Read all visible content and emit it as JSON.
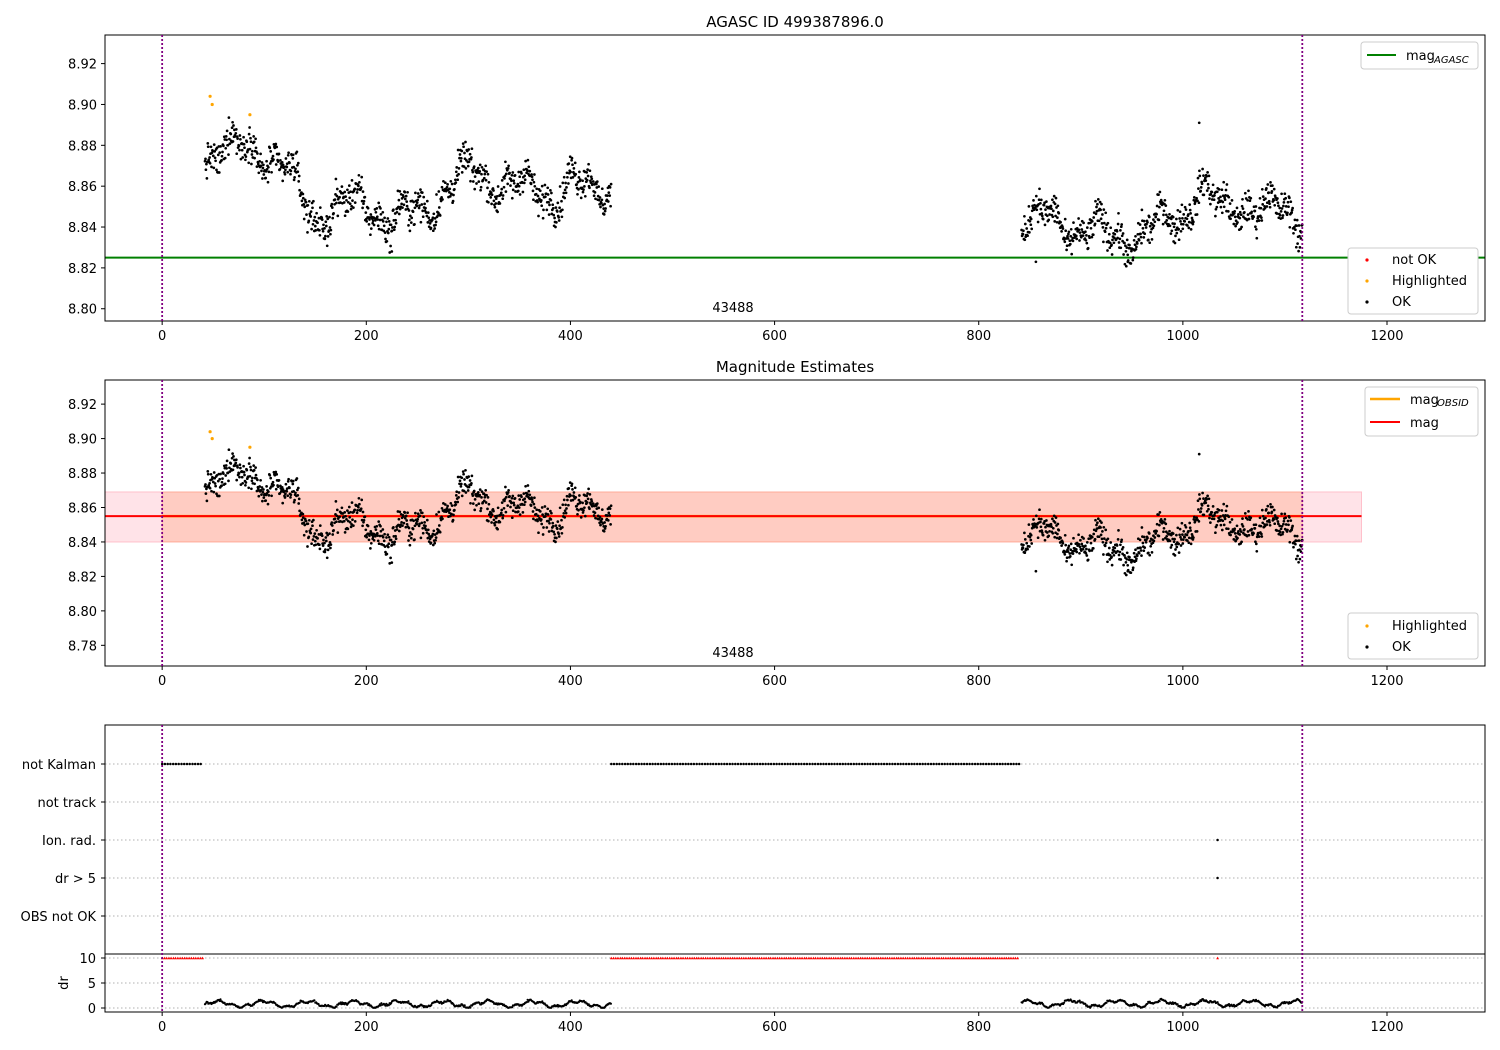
{
  "colors": {
    "ok": "#000000",
    "highlighted": "#ffa500",
    "not_ok": "#ff0000",
    "agasc_line": "#008000",
    "mag_line": "#ff0000",
    "obsid_line": "#ffa500",
    "band_pink": "#ffc0cb",
    "band_orange": "#ffa07a",
    "obs_boundary": "#800080",
    "grid": "#b0b0b0"
  },
  "chart_data": [
    {
      "type": "scatter",
      "title": "AGASC ID 499387896.0",
      "xlim": [
        -56,
        1296
      ],
      "ylim": [
        8.794,
        8.934
      ],
      "xticks": [
        0,
        200,
        400,
        600,
        800,
        1000,
        1200
      ],
      "yticks": [
        8.8,
        8.82,
        8.84,
        8.86,
        8.88,
        8.9,
        8.92
      ],
      "hline": {
        "name": "mag_AGASC",
        "y": 8.825
      },
      "obsid_label": {
        "text": "43488",
        "x": 558
      },
      "obs_boundaries": [
        0,
        1117
      ],
      "legend_top": {
        "placement": "top-right",
        "entries": [
          "mag",
          "AGASC"
        ]
      },
      "legend_bottom": {
        "placement": "lower-right",
        "entries": [
          "not OK",
          "Highlighted",
          "OK"
        ]
      },
      "highlighted_points": [
        [
          47,
          8.904
        ],
        [
          49,
          8.9
        ],
        [
          86,
          8.895
        ]
      ],
      "segments": [
        {
          "x": [
            42,
            440
          ],
          "anchors": [
            [
              42,
              8.875
            ],
            [
              90,
              8.88
            ],
            [
              120,
              8.868
            ],
            [
              150,
              8.845
            ],
            [
              175,
              8.85
            ],
            [
              200,
              8.852
            ],
            [
              225,
              8.843
            ],
            [
              255,
              8.848
            ],
            [
              285,
              8.862
            ],
            [
              305,
              8.867
            ],
            [
              330,
              8.862
            ],
            [
              360,
              8.858
            ],
            [
              385,
              8.856
            ],
            [
              400,
              8.862
            ],
            [
              420,
              8.858
            ],
            [
              440,
              8.86
            ]
          ]
        },
        {
          "x": [
            842,
            1117
          ],
          "anchors": [
            [
              842,
              8.842
            ],
            [
              870,
              8.845
            ],
            [
              900,
              8.838
            ],
            [
              930,
              8.836
            ],
            [
              955,
              8.835
            ],
            [
              980,
              8.842
            ],
            [
              1000,
              8.846
            ],
            [
              1015,
              8.86
            ],
            [
              1040,
              8.847
            ],
            [
              1060,
              8.852
            ],
            [
              1085,
              8.848
            ],
            [
              1117,
              8.845
            ]
          ]
        }
      ],
      "outliers": [
        [
          1016,
          8.891
        ],
        [
          856,
          8.823
        ],
        [
          946,
          8.823
        ],
        [
          225,
          8.828
        ]
      ]
    },
    {
      "type": "scatter",
      "title": "Magnitude Estimates",
      "xlim": [
        -56,
        1296
      ],
      "ylim": [
        8.768,
        8.934
      ],
      "xticks": [
        0,
        200,
        400,
        600,
        800,
        1000,
        1200
      ],
      "yticks": [
        8.78,
        8.8,
        8.82,
        8.84,
        8.86,
        8.88,
        8.9,
        8.92
      ],
      "mag_line": {
        "name": "mag",
        "y": 8.855
      },
      "band_pink": {
        "x": [
          -56,
          1175
        ],
        "y": [
          8.84,
          8.869
        ]
      },
      "band_orange": {
        "x": [
          0,
          1117
        ],
        "y": [
          8.84,
          8.869
        ]
      },
      "obsid_line": {
        "name": "mag_OBSID",
        "y": 8.855,
        "x": [
          0,
          1117
        ]
      },
      "obsid_label": {
        "text": "43488",
        "x": 558
      },
      "obs_boundaries": [
        0,
        1117
      ],
      "legend_top": {
        "placement": "top-right",
        "entries": [
          "mag",
          "OBSID",
          "mag"
        ]
      },
      "legend_bottom": {
        "placement": "lower-right",
        "entries": [
          "Highlighted",
          "OK"
        ]
      }
    },
    {
      "type": "scatter",
      "title": "",
      "xlim": [
        -56,
        1296
      ],
      "xticks": [
        0,
        200,
        400,
        600,
        800,
        1000,
        1200
      ],
      "flag_rows": [
        "not Kalman",
        "not track",
        "Ion. rad.",
        "dr > 5",
        "OBS not OK"
      ],
      "flag_spans": [
        {
          "row": "not Kalman",
          "x": [
            0,
            40
          ]
        },
        {
          "row": "not Kalman",
          "x": [
            440,
            840
          ]
        }
      ],
      "flag_points": [
        {
          "row": "Ion. rad.",
          "x": 1034
        },
        {
          "row": "dr > 5",
          "x": 1034
        }
      ],
      "dr_axis": {
        "ylabel": "dr",
        "yticks": [
          0,
          5,
          10
        ],
        "ylim": [
          -0.8,
          10.8
        ]
      },
      "dr_clipped": [
        {
          "x": [
            0,
            40
          ]
        },
        {
          "x": [
            440,
            840
          ]
        },
        {
          "x": [
            1034,
            1034
          ]
        }
      ],
      "dr_segments": [
        {
          "x": [
            42,
            440
          ],
          "mean": 0.8
        },
        {
          "x": [
            842,
            1117
          ],
          "mean": 0.9
        }
      ],
      "obs_boundaries": [
        0,
        1117
      ]
    }
  ]
}
